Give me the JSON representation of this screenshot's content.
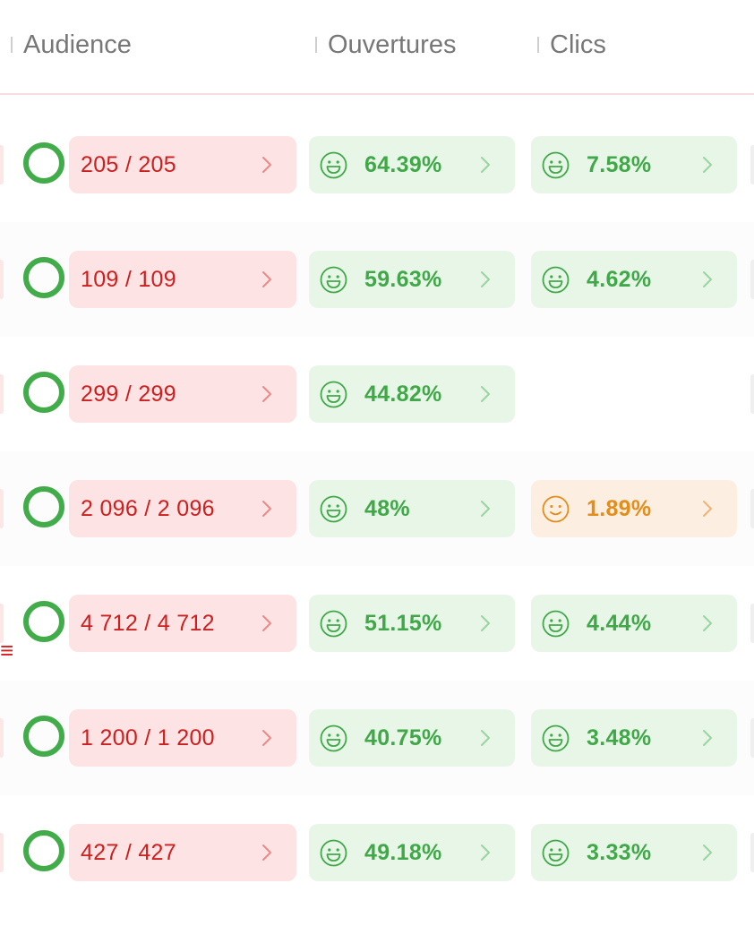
{
  "columns": {
    "audience": "Audience",
    "opens": "Ouvertures",
    "clicks": "Clics"
  },
  "colors": {
    "good": "#41a849",
    "warn": "#e38d1a",
    "audience": "#cc1f1f",
    "ring": "#41ac49"
  },
  "icons": {
    "status": "circle-ring-icon",
    "good": "happy-face-icon",
    "warn": "smile-face-icon",
    "arrow": "chevron-right-icon"
  },
  "rows": [
    {
      "audience": "205 / 205",
      "opens": "64.39%",
      "clicks": "7.58%",
      "clicks_level": "good"
    },
    {
      "audience": "109 / 109",
      "opens": "59.63%",
      "clicks": "4.62%",
      "clicks_level": "good"
    },
    {
      "audience": "299 / 299",
      "opens": "44.82%",
      "clicks": null,
      "clicks_level": null
    },
    {
      "audience": "2 096 / 2 096",
      "opens": "48%",
      "clicks": "1.89%",
      "clicks_level": "warn"
    },
    {
      "audience": "4 712 / 4 712",
      "opens": "51.15%",
      "clicks": "4.44%",
      "clicks_level": "good"
    },
    {
      "audience": "1 200 / 1 200",
      "opens": "40.75%",
      "clicks": "3.48%",
      "clicks_level": "good"
    },
    {
      "audience": "427 / 427",
      "opens": "49.18%",
      "clicks": "3.33%",
      "clicks_level": "good"
    }
  ]
}
